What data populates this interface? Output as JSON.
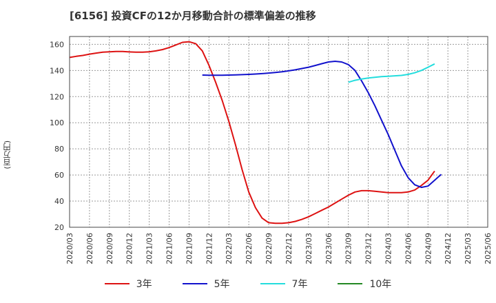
{
  "chart_data": {
    "type": "line",
    "title": "[6156]  投資CFの12か月移動合計の標準偏差の推移",
    "ylabel": "(百万円)",
    "ylim": [
      20,
      166
    ],
    "yticks": [
      20,
      40,
      60,
      80,
      100,
      120,
      140,
      160
    ],
    "xticks": [
      "2020/03",
      "2020/06",
      "2020/09",
      "2020/12",
      "2021/03",
      "2021/06",
      "2021/09",
      "2021/12",
      "2022/03",
      "2022/06",
      "2022/09",
      "2022/12",
      "2023/03",
      "2023/06",
      "2023/09",
      "2023/12",
      "2024/03",
      "2024/06",
      "2024/09",
      "2024/12",
      "2025/03",
      "2025/06"
    ],
    "grid": true,
    "legend_position": "bottom",
    "series": [
      {
        "name": "3年",
        "color": "#dd1111",
        "points": [
          [
            "2020/03",
            150
          ],
          [
            "2020/04",
            150.8
          ],
          [
            "2020/05",
            151.5
          ],
          [
            "2020/06",
            152.5
          ],
          [
            "2020/07",
            153.3
          ],
          [
            "2020/08",
            154
          ],
          [
            "2020/09",
            154.3
          ],
          [
            "2020/10",
            154.5
          ],
          [
            "2020/11",
            154.5
          ],
          [
            "2020/12",
            154.2
          ],
          [
            "2021/01",
            154
          ],
          [
            "2021/02",
            154
          ],
          [
            "2021/03",
            154.3
          ],
          [
            "2021/04",
            155
          ],
          [
            "2021/05",
            156
          ],
          [
            "2021/06",
            157.5
          ],
          [
            "2021/07",
            159.5
          ],
          [
            "2021/08",
            161.5
          ],
          [
            "2021/09",
            162
          ],
          [
            "2021/10",
            160.5
          ],
          [
            "2021/11",
            155
          ],
          [
            "2021/12",
            144
          ],
          [
            "2022/01",
            131
          ],
          [
            "2022/02",
            117
          ],
          [
            "2022/03",
            101
          ],
          [
            "2022/04",
            83
          ],
          [
            "2022/05",
            64
          ],
          [
            "2022/06",
            47
          ],
          [
            "2022/07",
            35
          ],
          [
            "2022/08",
            27
          ],
          [
            "2022/09",
            23.5
          ],
          [
            "2022/10",
            23
          ],
          [
            "2022/11",
            23
          ],
          [
            "2022/12",
            23.5
          ],
          [
            "2023/01",
            24.5
          ],
          [
            "2023/02",
            26
          ],
          [
            "2023/03",
            28
          ],
          [
            "2023/04",
            30.5
          ],
          [
            "2023/05",
            33
          ],
          [
            "2023/06",
            35.5
          ],
          [
            "2023/07",
            38.5
          ],
          [
            "2023/08",
            41.5
          ],
          [
            "2023/09",
            44.5
          ],
          [
            "2023/10",
            47
          ],
          [
            "2023/11",
            48
          ],
          [
            "2023/12",
            48
          ],
          [
            "2024/01",
            47.5
          ],
          [
            "2024/02",
            47
          ],
          [
            "2024/03",
            46.5
          ],
          [
            "2024/04",
            46.5
          ],
          [
            "2024/05",
            46.5
          ],
          [
            "2024/06",
            47
          ],
          [
            "2024/07",
            48.5
          ],
          [
            "2024/08",
            52
          ],
          [
            "2024/09",
            56
          ],
          [
            "2024/10",
            63
          ]
        ]
      },
      {
        "name": "5年",
        "color": "#1111cc",
        "points": [
          [
            "2021/11",
            136.5
          ],
          [
            "2021/12",
            136.3
          ],
          [
            "2022/01",
            136.3
          ],
          [
            "2022/02",
            136.4
          ],
          [
            "2022/03",
            136.5
          ],
          [
            "2022/04",
            136.6
          ],
          [
            "2022/05",
            136.8
          ],
          [
            "2022/06",
            137
          ],
          [
            "2022/07",
            137.3
          ],
          [
            "2022/08",
            137.6
          ],
          [
            "2022/09",
            138
          ],
          [
            "2022/10",
            138.5
          ],
          [
            "2022/11",
            139
          ],
          [
            "2022/12",
            139.7
          ],
          [
            "2023/01",
            140.5
          ],
          [
            "2023/02",
            141.5
          ],
          [
            "2023/03",
            142.5
          ],
          [
            "2023/04",
            143.8
          ],
          [
            "2023/05",
            145.2
          ],
          [
            "2023/06",
            146.5
          ],
          [
            "2023/07",
            147
          ],
          [
            "2023/08",
            146.5
          ],
          [
            "2023/09",
            144.5
          ],
          [
            "2023/10",
            140
          ],
          [
            "2023/11",
            132
          ],
          [
            "2023/12",
            123
          ],
          [
            "2024/01",
            113
          ],
          [
            "2024/02",
            102
          ],
          [
            "2024/03",
            91
          ],
          [
            "2024/04",
            79
          ],
          [
            "2024/05",
            67
          ],
          [
            "2024/06",
            58
          ],
          [
            "2024/07",
            52.5
          ],
          [
            "2024/08",
            50.5
          ],
          [
            "2024/09",
            51.5
          ],
          [
            "2024/10",
            56
          ],
          [
            "2024/11",
            60.5
          ]
        ]
      },
      {
        "name": "7年",
        "color": "#22dddd",
        "points": [
          [
            "2023/09",
            131
          ],
          [
            "2023/10",
            132.5
          ],
          [
            "2023/11",
            133.5
          ],
          [
            "2023/12",
            134.2
          ],
          [
            "2024/01",
            134.8
          ],
          [
            "2024/02",
            135.3
          ],
          [
            "2024/03",
            135.6
          ],
          [
            "2024/04",
            135.9
          ],
          [
            "2024/05",
            136.2
          ],
          [
            "2024/06",
            137
          ],
          [
            "2024/07",
            138.2
          ],
          [
            "2024/08",
            140
          ],
          [
            "2024/09",
            142.5
          ],
          [
            "2024/10",
            145
          ]
        ]
      },
      {
        "name": "10年",
        "color": "#228822",
        "points": []
      }
    ]
  }
}
